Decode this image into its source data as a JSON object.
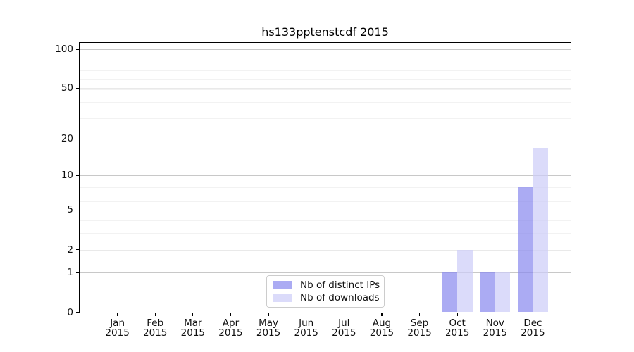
{
  "chart_data": {
    "type": "bar",
    "title": "hs133pptenstcdf 2015",
    "categories": [
      "Jan",
      "Feb",
      "Mar",
      "Apr",
      "May",
      "Jun",
      "Jul",
      "Aug",
      "Sep",
      "Oct",
      "Nov",
      "Dec"
    ],
    "category_year": "2015",
    "series": [
      {
        "name": "Nb of distinct IPs",
        "color": "#8888ee",
        "fill_opacity": 0.7,
        "values": [
          0,
          0,
          0,
          0,
          0,
          0,
          0,
          0,
          0,
          1,
          1,
          8
        ]
      },
      {
        "name": "Nb of downloads",
        "color": "#ccccf8",
        "fill_opacity": 0.7,
        "values": [
          0,
          0,
          0,
          0,
          0,
          0,
          0,
          0,
          0,
          2,
          1,
          17
        ]
      }
    ],
    "xlabel": "",
    "ylabel": "",
    "y_ticks": [
      0,
      1,
      2,
      5,
      10,
      20,
      50,
      100
    ],
    "y_major_gridlines": [
      1,
      10,
      100
    ],
    "y_scale": "log(1+x)",
    "ylim": [
      0,
      113
    ],
    "grid": true,
    "legend_position": "bottom-center",
    "colors": {
      "spine": "#000000",
      "grid_major": "#c8c8c8",
      "grid_minor": "#ececec",
      "background": "#ffffff"
    }
  }
}
